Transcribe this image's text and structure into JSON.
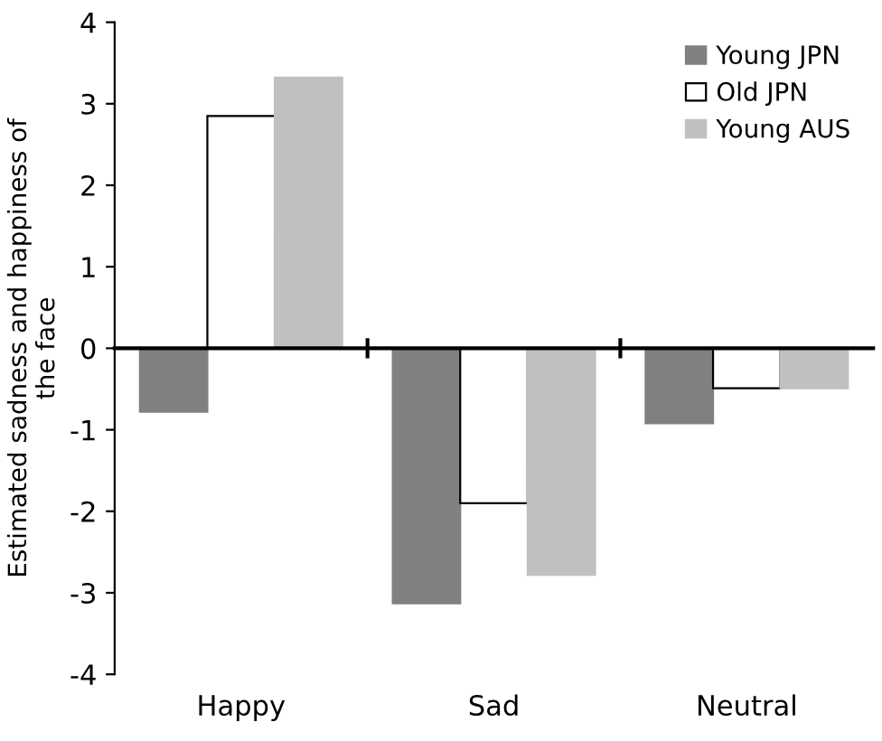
{
  "chart_data": {
    "type": "bar",
    "ylabel": "Estimated sadness and happiness of\nthe face",
    "categories": [
      "Happy",
      "Sad",
      "Neutral"
    ],
    "series": [
      {
        "name": "Young JPN",
        "color": "#808080",
        "values": [
          -0.78,
          -3.13,
          -0.92
        ]
      },
      {
        "name": "Old JPN",
        "color": "#ffffff",
        "values": [
          2.85,
          -1.9,
          -0.49
        ]
      },
      {
        "name": "Young AUS",
        "color": "#c0c0c0",
        "values": [
          3.32,
          -2.78,
          -0.49
        ]
      }
    ],
    "ylim": [
      -4,
      4
    ],
    "yticks": [
      -4,
      -3,
      -2,
      -1,
      0,
      1,
      2,
      3,
      4
    ],
    "legend": "top right"
  }
}
